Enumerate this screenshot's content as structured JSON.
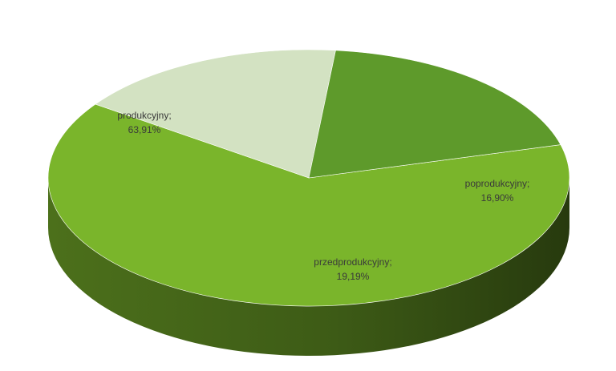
{
  "chart_data": {
    "type": "pie",
    "style": "3d",
    "title": "",
    "legend": "none",
    "slices": [
      {
        "label": "produkcyjny",
        "value": 63.91,
        "value_label": "63,91%",
        "color": "#7ab52b"
      },
      {
        "label": "poprodukcyjny",
        "value": 16.9,
        "value_label": "16,90%",
        "color": "#d3e2c2"
      },
      {
        "label": "przedprodukcyjny",
        "value": 19.19,
        "value_label": "19,19%",
        "color": "#5e9a2b"
      }
    ]
  }
}
